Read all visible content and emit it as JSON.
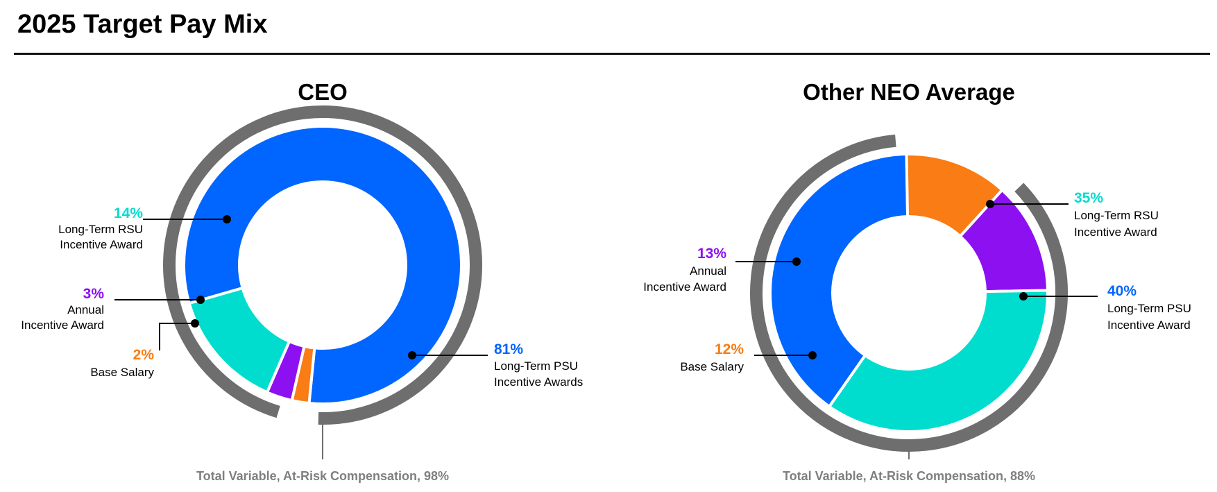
{
  "page": {
    "title": "2025 Target Pay Mix"
  },
  "chart_data": [
    {
      "type": "pie",
      "title": "CEO",
      "slices": [
        {
          "label_line1": "Long-Term PSU",
          "label_line2": "Incentive Awards",
          "value": 81,
          "value_label": "81%",
          "color": "#0066FF"
        },
        {
          "label_line1": "Base Salary",
          "label_line2": "",
          "value": 2,
          "value_label": "2%",
          "color": "#F97C14"
        },
        {
          "label_line1": "Annual",
          "label_line2": "Incentive Award",
          "value": 3,
          "value_label": "3%",
          "color": "#8C10F0"
        },
        {
          "label_line1": "Long-Term RSU",
          "label_line2": "Incentive Award",
          "value": 14,
          "value_label": "14%",
          "color": "#00DDCF"
        }
      ],
      "at_risk": {
        "label": "Total Variable, At-Risk Compensation, 98%",
        "value": 98
      }
    },
    {
      "type": "pie",
      "title": "Other NEO Average",
      "slices": [
        {
          "label_line1": "Long-Term PSU",
          "label_line2": "Incentive Award",
          "value": 40,
          "value_label": "40%",
          "color": "#0066FF"
        },
        {
          "label_line1": "Base Salary",
          "label_line2": "",
          "value": 12,
          "value_label": "12%",
          "color": "#F97C14"
        },
        {
          "label_line1": "Annual",
          "label_line2": "Incentive Award",
          "value": 13,
          "value_label": "13%",
          "color": "#8C10F0"
        },
        {
          "label_line1": "Long-Term RSU",
          "label_line2": "Incentive Award",
          "value": 35,
          "value_label": "35%",
          "color": "#00DDCF"
        }
      ],
      "at_risk": {
        "label": "Total Variable, At-Risk Compensation, 88%",
        "value": 88
      }
    }
  ],
  "colors": {
    "at_risk_arc": "#6E6E6E",
    "at_risk_text": "#7F7F7F",
    "leader_line": "#000000"
  }
}
